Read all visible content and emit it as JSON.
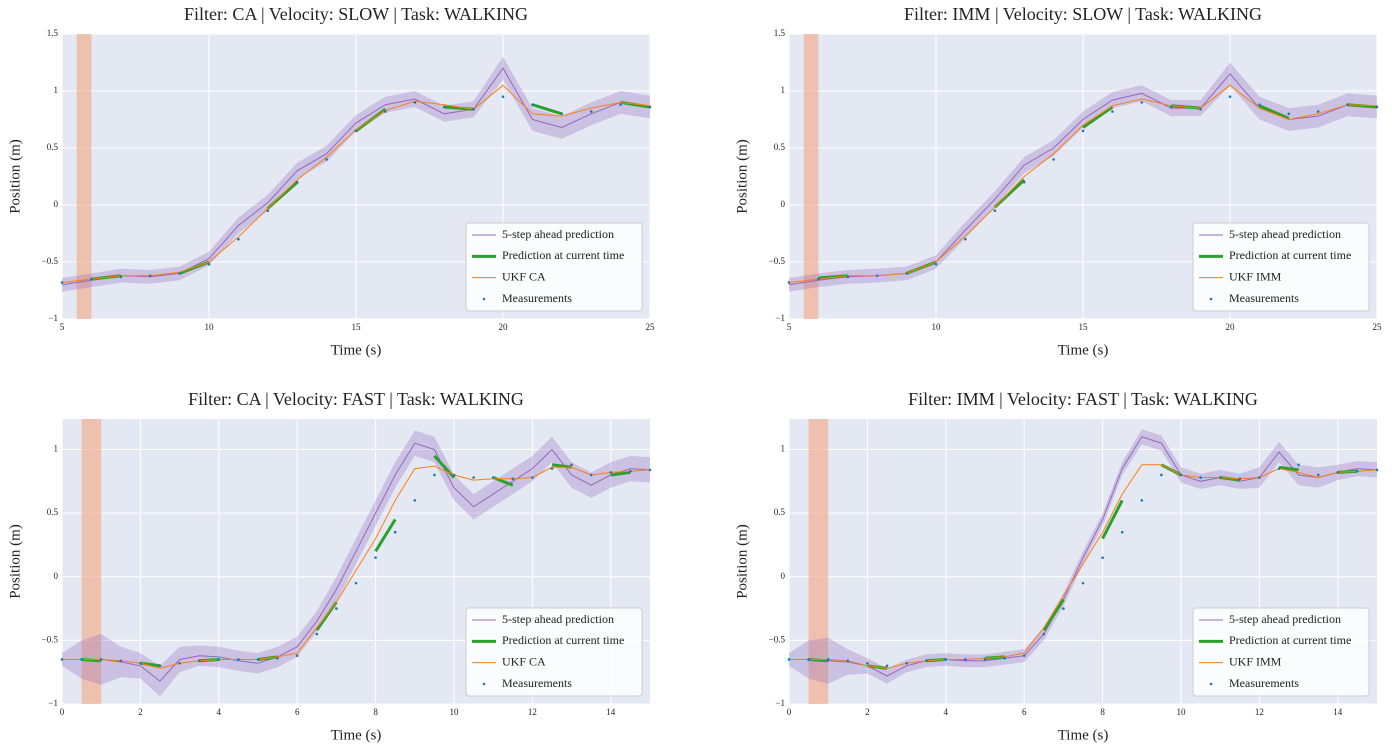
{
  "chart_data": [
    {
      "type": "line",
      "title": "Filter: CA  |  Velocity: SLOW  |  Task: WALKING",
      "x_label": "Time (s)",
      "y_label": "Position (m)",
      "xlim": [
        5,
        25
      ],
      "xticks": [
        5,
        10,
        15,
        20,
        25
      ],
      "ylim": [
        -1,
        1.5
      ],
      "yticks": [
        {
          "value": -1,
          "label": "−1"
        },
        {
          "value": -0.5,
          "label": "−0.5"
        },
        0,
        0.5,
        1,
        1.5
      ],
      "grid": true,
      "legend": "lower right",
      "highlight": [
        5.5,
        6.0
      ],
      "highlight_color": "#f4a582",
      "x": [
        5,
        6,
        7,
        8,
        9,
        10,
        11,
        12,
        13,
        14,
        15,
        16,
        17,
        18,
        19,
        20,
        21,
        22,
        23,
        24,
        25
      ],
      "series": [
        {
          "name": "5-step ahead prediction",
          "color": "#9467bd",
          "style": "band",
          "values": [
            -0.7,
            -0.66,
            -0.62,
            -0.63,
            -0.6,
            -0.47,
            -0.18,
            0.02,
            0.3,
            0.45,
            0.72,
            0.88,
            0.93,
            0.8,
            0.84,
            1.2,
            0.75,
            0.68,
            0.8,
            0.9,
            0.86
          ],
          "error": [
            0.06,
            0.06,
            0.06,
            0.06,
            0.06,
            0.06,
            0.07,
            0.07,
            0.07,
            0.07,
            0.07,
            0.07,
            0.07,
            0.07,
            0.07,
            0.1,
            0.1,
            0.1,
            0.1,
            0.1,
            0.1
          ]
        },
        {
          "name": "Prediction at current time",
          "color": "#2ca02c",
          "style": "thick",
          "values": [
            null,
            -0.65,
            -0.62,
            null,
            -0.6,
            -0.5,
            null,
            -0.03,
            0.2,
            null,
            0.65,
            0.84,
            null,
            0.86,
            0.84,
            null,
            0.88,
            0.8,
            null,
            0.9,
            0.86
          ]
        },
        {
          "name": "UKF CA",
          "color": "#ff7f0e",
          "style": "line",
          "values": [
            -0.68,
            -0.65,
            -0.62,
            -0.62,
            -0.59,
            -0.5,
            -0.28,
            -0.03,
            0.22,
            0.42,
            0.66,
            0.83,
            0.91,
            0.88,
            0.84,
            1.05,
            0.8,
            0.78,
            0.85,
            0.9,
            0.87
          ]
        },
        {
          "name": "Measurements",
          "color": "#1f77b4",
          "style": "dots",
          "values": [
            -0.68,
            -0.65,
            -0.63,
            -0.62,
            -0.6,
            -0.52,
            -0.3,
            -0.05,
            0.2,
            0.4,
            0.65,
            0.82,
            0.9,
            0.86,
            0.84,
            0.95,
            0.88,
            0.8,
            0.82,
            0.88,
            0.86
          ]
        }
      ]
    },
    {
      "type": "line",
      "title": "Filter: IMM  |  Velocity: SLOW  |  Task: WALKING",
      "x_label": "Time (s)",
      "y_label": "Position (m)",
      "xlim": [
        5,
        25
      ],
      "xticks": [
        5,
        10,
        15,
        20,
        25
      ],
      "ylim": [
        -1,
        1.5
      ],
      "yticks": [
        {
          "value": -1,
          "label": "−1"
        },
        {
          "value": -0.5,
          "label": "−0.5"
        },
        0,
        0.5,
        1,
        1.5
      ],
      "grid": true,
      "legend": "lower right",
      "highlight": [
        5.5,
        6.0
      ],
      "highlight_color": "#f4a582",
      "x": [
        5,
        6,
        7,
        8,
        9,
        10,
        11,
        12,
        13,
        14,
        15,
        16,
        17,
        18,
        19,
        20,
        21,
        22,
        23,
        24,
        25
      ],
      "series": [
        {
          "name": "5-step ahead prediction",
          "color": "#9467bd",
          "style": "band",
          "values": [
            -0.7,
            -0.66,
            -0.63,
            -0.62,
            -0.6,
            -0.5,
            -0.22,
            0.05,
            0.35,
            0.5,
            0.75,
            0.92,
            0.98,
            0.85,
            0.85,
            1.15,
            0.85,
            0.75,
            0.78,
            0.88,
            0.86
          ],
          "error": [
            0.06,
            0.06,
            0.06,
            0.06,
            0.06,
            0.06,
            0.07,
            0.07,
            0.07,
            0.07,
            0.07,
            0.07,
            0.07,
            0.07,
            0.07,
            0.1,
            0.1,
            0.1,
            0.1,
            0.1,
            0.1
          ]
        },
        {
          "name": "Prediction at current time",
          "color": "#2ca02c",
          "style": "thick",
          "values": [
            null,
            -0.64,
            -0.62,
            null,
            -0.6,
            -0.5,
            null,
            -0.02,
            0.22,
            null,
            0.68,
            0.86,
            null,
            0.87,
            0.85,
            null,
            0.87,
            0.76,
            null,
            0.88,
            0.86
          ]
        },
        {
          "name": "UKF IMM",
          "color": "#ff7f0e",
          "style": "line",
          "values": [
            -0.68,
            -0.65,
            -0.62,
            -0.62,
            -0.6,
            -0.5,
            -0.27,
            -0.02,
            0.25,
            0.45,
            0.7,
            0.87,
            0.93,
            0.87,
            0.85,
            1.05,
            0.85,
            0.75,
            0.8,
            0.88,
            0.87
          ]
        },
        {
          "name": "Measurements",
          "color": "#1f77b4",
          "style": "dots",
          "values": [
            -0.68,
            -0.65,
            -0.63,
            -0.62,
            -0.6,
            -0.52,
            -0.3,
            -0.05,
            0.2,
            0.4,
            0.65,
            0.82,
            0.9,
            0.86,
            0.84,
            0.95,
            0.88,
            0.8,
            0.82,
            0.88,
            0.86
          ]
        }
      ]
    },
    {
      "type": "line",
      "title": "Filter: CA  |  Velocity: FAST  |  Task: WALKING",
      "x_label": "Time (s)",
      "y_label": "Position (m)",
      "xlim": [
        0,
        15
      ],
      "xticks": [
        0,
        2,
        4,
        6,
        8,
        10,
        12,
        14
      ],
      "ylim": [
        -1,
        1.24
      ],
      "yticks": [
        {
          "value": -1,
          "label": "−1"
        },
        {
          "value": -0.5,
          "label": "−0.5"
        },
        0,
        0.5,
        1
      ],
      "grid": true,
      "legend": "lower right",
      "highlight": [
        0.5,
        1.0
      ],
      "highlight_color": "#f4a582",
      "x": [
        0,
        0.5,
        1,
        1.5,
        2,
        2.5,
        3,
        3.5,
        4,
        4.5,
        5,
        5.5,
        6,
        6.5,
        7,
        7.5,
        8,
        8.5,
        9,
        9.5,
        10,
        10.5,
        11,
        11.5,
        12,
        12.5,
        13,
        13.5,
        14,
        14.5,
        15
      ],
      "series": [
        {
          "name": "5-step ahead prediction",
          "color": "#9467bd",
          "style": "band",
          "values": [
            -0.65,
            -0.65,
            -0.65,
            -0.67,
            -0.7,
            -0.82,
            -0.65,
            -0.62,
            -0.63,
            -0.66,
            -0.68,
            -0.63,
            -0.55,
            -0.35,
            -0.1,
            0.2,
            0.5,
            0.8,
            1.05,
            1.0,
            0.7,
            0.55,
            0.65,
            0.75,
            0.85,
            1.0,
            0.8,
            0.72,
            0.8,
            0.85,
            0.84
          ],
          "error": [
            0.05,
            0.15,
            0.2,
            0.12,
            0.1,
            0.12,
            0.1,
            0.08,
            0.08,
            0.08,
            0.08,
            0.08,
            0.08,
            0.08,
            0.1,
            0.1,
            0.1,
            0.1,
            0.1,
            0.1,
            0.1,
            0.1,
            0.1,
            0.1,
            0.1,
            0.1,
            0.1,
            0.1,
            0.1,
            0.1,
            0.1
          ]
        },
        {
          "name": "Prediction at current time",
          "color": "#2ca02c",
          "style": "thick",
          "values": [
            null,
            -0.65,
            -0.66,
            null,
            -0.68,
            -0.7,
            null,
            -0.66,
            -0.65,
            null,
            -0.65,
            -0.63,
            null,
            -0.42,
            -0.2,
            null,
            0.2,
            0.45,
            null,
            0.95,
            0.78,
            null,
            0.78,
            0.72,
            null,
            0.88,
            0.86,
            null,
            0.8,
            0.82,
            null
          ]
        },
        {
          "name": "UKF CA",
          "color": "#ff7f0e",
          "style": "line",
          "values": [
            -0.65,
            -0.65,
            -0.65,
            -0.66,
            -0.68,
            -0.72,
            -0.68,
            -0.66,
            -0.65,
            -0.65,
            -0.65,
            -0.63,
            -0.6,
            -0.4,
            -0.2,
            0.05,
            0.3,
            0.6,
            0.85,
            0.87,
            0.8,
            0.76,
            0.77,
            0.77,
            0.78,
            0.86,
            0.86,
            0.8,
            0.82,
            0.83,
            0.84
          ]
        },
        {
          "name": "Measurements",
          "color": "#1f77b4",
          "style": "dots",
          "values": [
            -0.65,
            -0.65,
            -0.65,
            -0.66,
            -0.68,
            -0.7,
            -0.68,
            -0.66,
            -0.65,
            -0.65,
            -0.65,
            -0.64,
            -0.62,
            -0.45,
            -0.25,
            -0.05,
            0.15,
            0.35,
            0.6,
            0.8,
            0.8,
            0.78,
            0.78,
            0.77,
            0.78,
            0.85,
            0.88,
            0.8,
            0.82,
            0.83,
            0.84
          ]
        }
      ]
    },
    {
      "type": "line",
      "title": "Filter: IMM  |  Velocity: FAST  |  Task: WALKING",
      "x_label": "Time (s)",
      "y_label": "Position (m)",
      "xlim": [
        0,
        15
      ],
      "xticks": [
        0,
        2,
        4,
        6,
        8,
        10,
        12,
        14
      ],
      "ylim": [
        -1,
        1.24
      ],
      "yticks": [
        {
          "value": -1,
          "label": "−1"
        },
        {
          "value": -0.5,
          "label": "−0.5"
        },
        0,
        0.5,
        1
      ],
      "grid": true,
      "legend": "lower right",
      "highlight": [
        0.5,
        1.0
      ],
      "highlight_color": "#f4a582",
      "x": [
        0,
        0.5,
        1,
        1.5,
        2,
        2.5,
        3,
        3.5,
        4,
        4.5,
        5,
        5.5,
        6,
        6.5,
        7,
        7.5,
        8,
        8.5,
        9,
        9.5,
        10,
        10.5,
        11,
        11.5,
        12,
        12.5,
        13,
        13.5,
        14,
        14.5,
        15
      ],
      "series": [
        {
          "name": "5-step ahead prediction",
          "color": "#9467bd",
          "style": "band",
          "values": [
            -0.65,
            -0.65,
            -0.66,
            -0.67,
            -0.7,
            -0.78,
            -0.7,
            -0.66,
            -0.65,
            -0.66,
            -0.66,
            -0.64,
            -0.62,
            -0.45,
            -0.18,
            0.15,
            0.45,
            0.85,
            1.1,
            1.05,
            0.8,
            0.75,
            0.78,
            0.75,
            0.78,
            0.98,
            0.8,
            0.78,
            0.82,
            0.85,
            0.84
          ],
          "error": [
            0.05,
            0.15,
            0.18,
            0.1,
            0.06,
            0.06,
            0.05,
            0.05,
            0.05,
            0.05,
            0.05,
            0.05,
            0.05,
            0.05,
            0.05,
            0.05,
            0.05,
            0.05,
            0.06,
            0.06,
            0.06,
            0.06,
            0.06,
            0.06,
            0.08,
            0.08,
            0.08,
            0.08,
            0.06,
            0.06,
            0.06
          ]
        },
        {
          "name": "Prediction at current time",
          "color": "#2ca02c",
          "style": "thick",
          "values": [
            null,
            -0.65,
            -0.66,
            null,
            -0.7,
            -0.72,
            null,
            -0.66,
            -0.65,
            null,
            -0.64,
            -0.63,
            null,
            -0.42,
            -0.18,
            null,
            0.3,
            0.6,
            null,
            0.88,
            0.8,
            null,
            0.78,
            0.76,
            null,
            0.86,
            0.84,
            null,
            0.82,
            0.83,
            null
          ]
        },
        {
          "name": "UKF IMM",
          "color": "#ff7f0e",
          "style": "line",
          "values": [
            -0.65,
            -0.65,
            -0.65,
            -0.66,
            -0.7,
            -0.72,
            -0.68,
            -0.66,
            -0.65,
            -0.65,
            -0.64,
            -0.63,
            -0.6,
            -0.4,
            -0.15,
            0.1,
            0.35,
            0.65,
            0.88,
            0.88,
            0.8,
            0.78,
            0.78,
            0.77,
            0.78,
            0.85,
            0.82,
            0.78,
            0.82,
            0.83,
            0.84
          ]
        },
        {
          "name": "Measurements",
          "color": "#1f77b4",
          "style": "dots",
          "values": [
            -0.65,
            -0.65,
            -0.65,
            -0.66,
            -0.68,
            -0.7,
            -0.68,
            -0.66,
            -0.65,
            -0.65,
            -0.65,
            -0.64,
            -0.62,
            -0.45,
            -0.25,
            -0.05,
            0.15,
            0.35,
            0.6,
            0.8,
            0.8,
            0.78,
            0.78,
            0.77,
            0.78,
            0.85,
            0.88,
            0.8,
            0.82,
            0.83,
            0.84
          ]
        }
      ]
    }
  ]
}
